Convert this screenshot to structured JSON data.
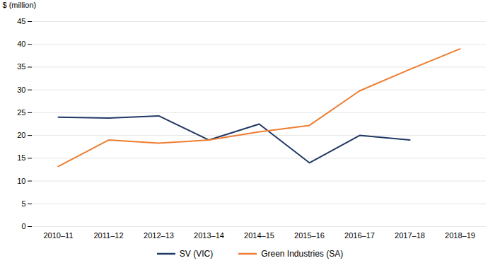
{
  "chart_data": {
    "type": "line",
    "ylabel": "$ (million)",
    "categories": [
      "2010–11",
      "2011–12",
      "2012–13",
      "2013–14",
      "2014–15",
      "2015–16",
      "2016–17",
      "2017–18",
      "2018–19"
    ],
    "series": [
      {
        "name": "SV (VIC)",
        "color": "#203864",
        "values": [
          24.0,
          23.8,
          24.3,
          19.0,
          22.5,
          14.0,
          20.0,
          19.0,
          null
        ]
      },
      {
        "name": "Green Industries (SA)",
        "color": "#ED7D31",
        "values": [
          13.2,
          19.0,
          18.3,
          19.0,
          20.8,
          22.2,
          29.8,
          34.5,
          39.0
        ]
      }
    ],
    "ylim": [
      0,
      45
    ],
    "yticks": [
      0,
      5,
      10,
      15,
      20,
      25,
      30,
      35,
      40,
      45
    ],
    "grid": true,
    "legend": "bottom"
  }
}
